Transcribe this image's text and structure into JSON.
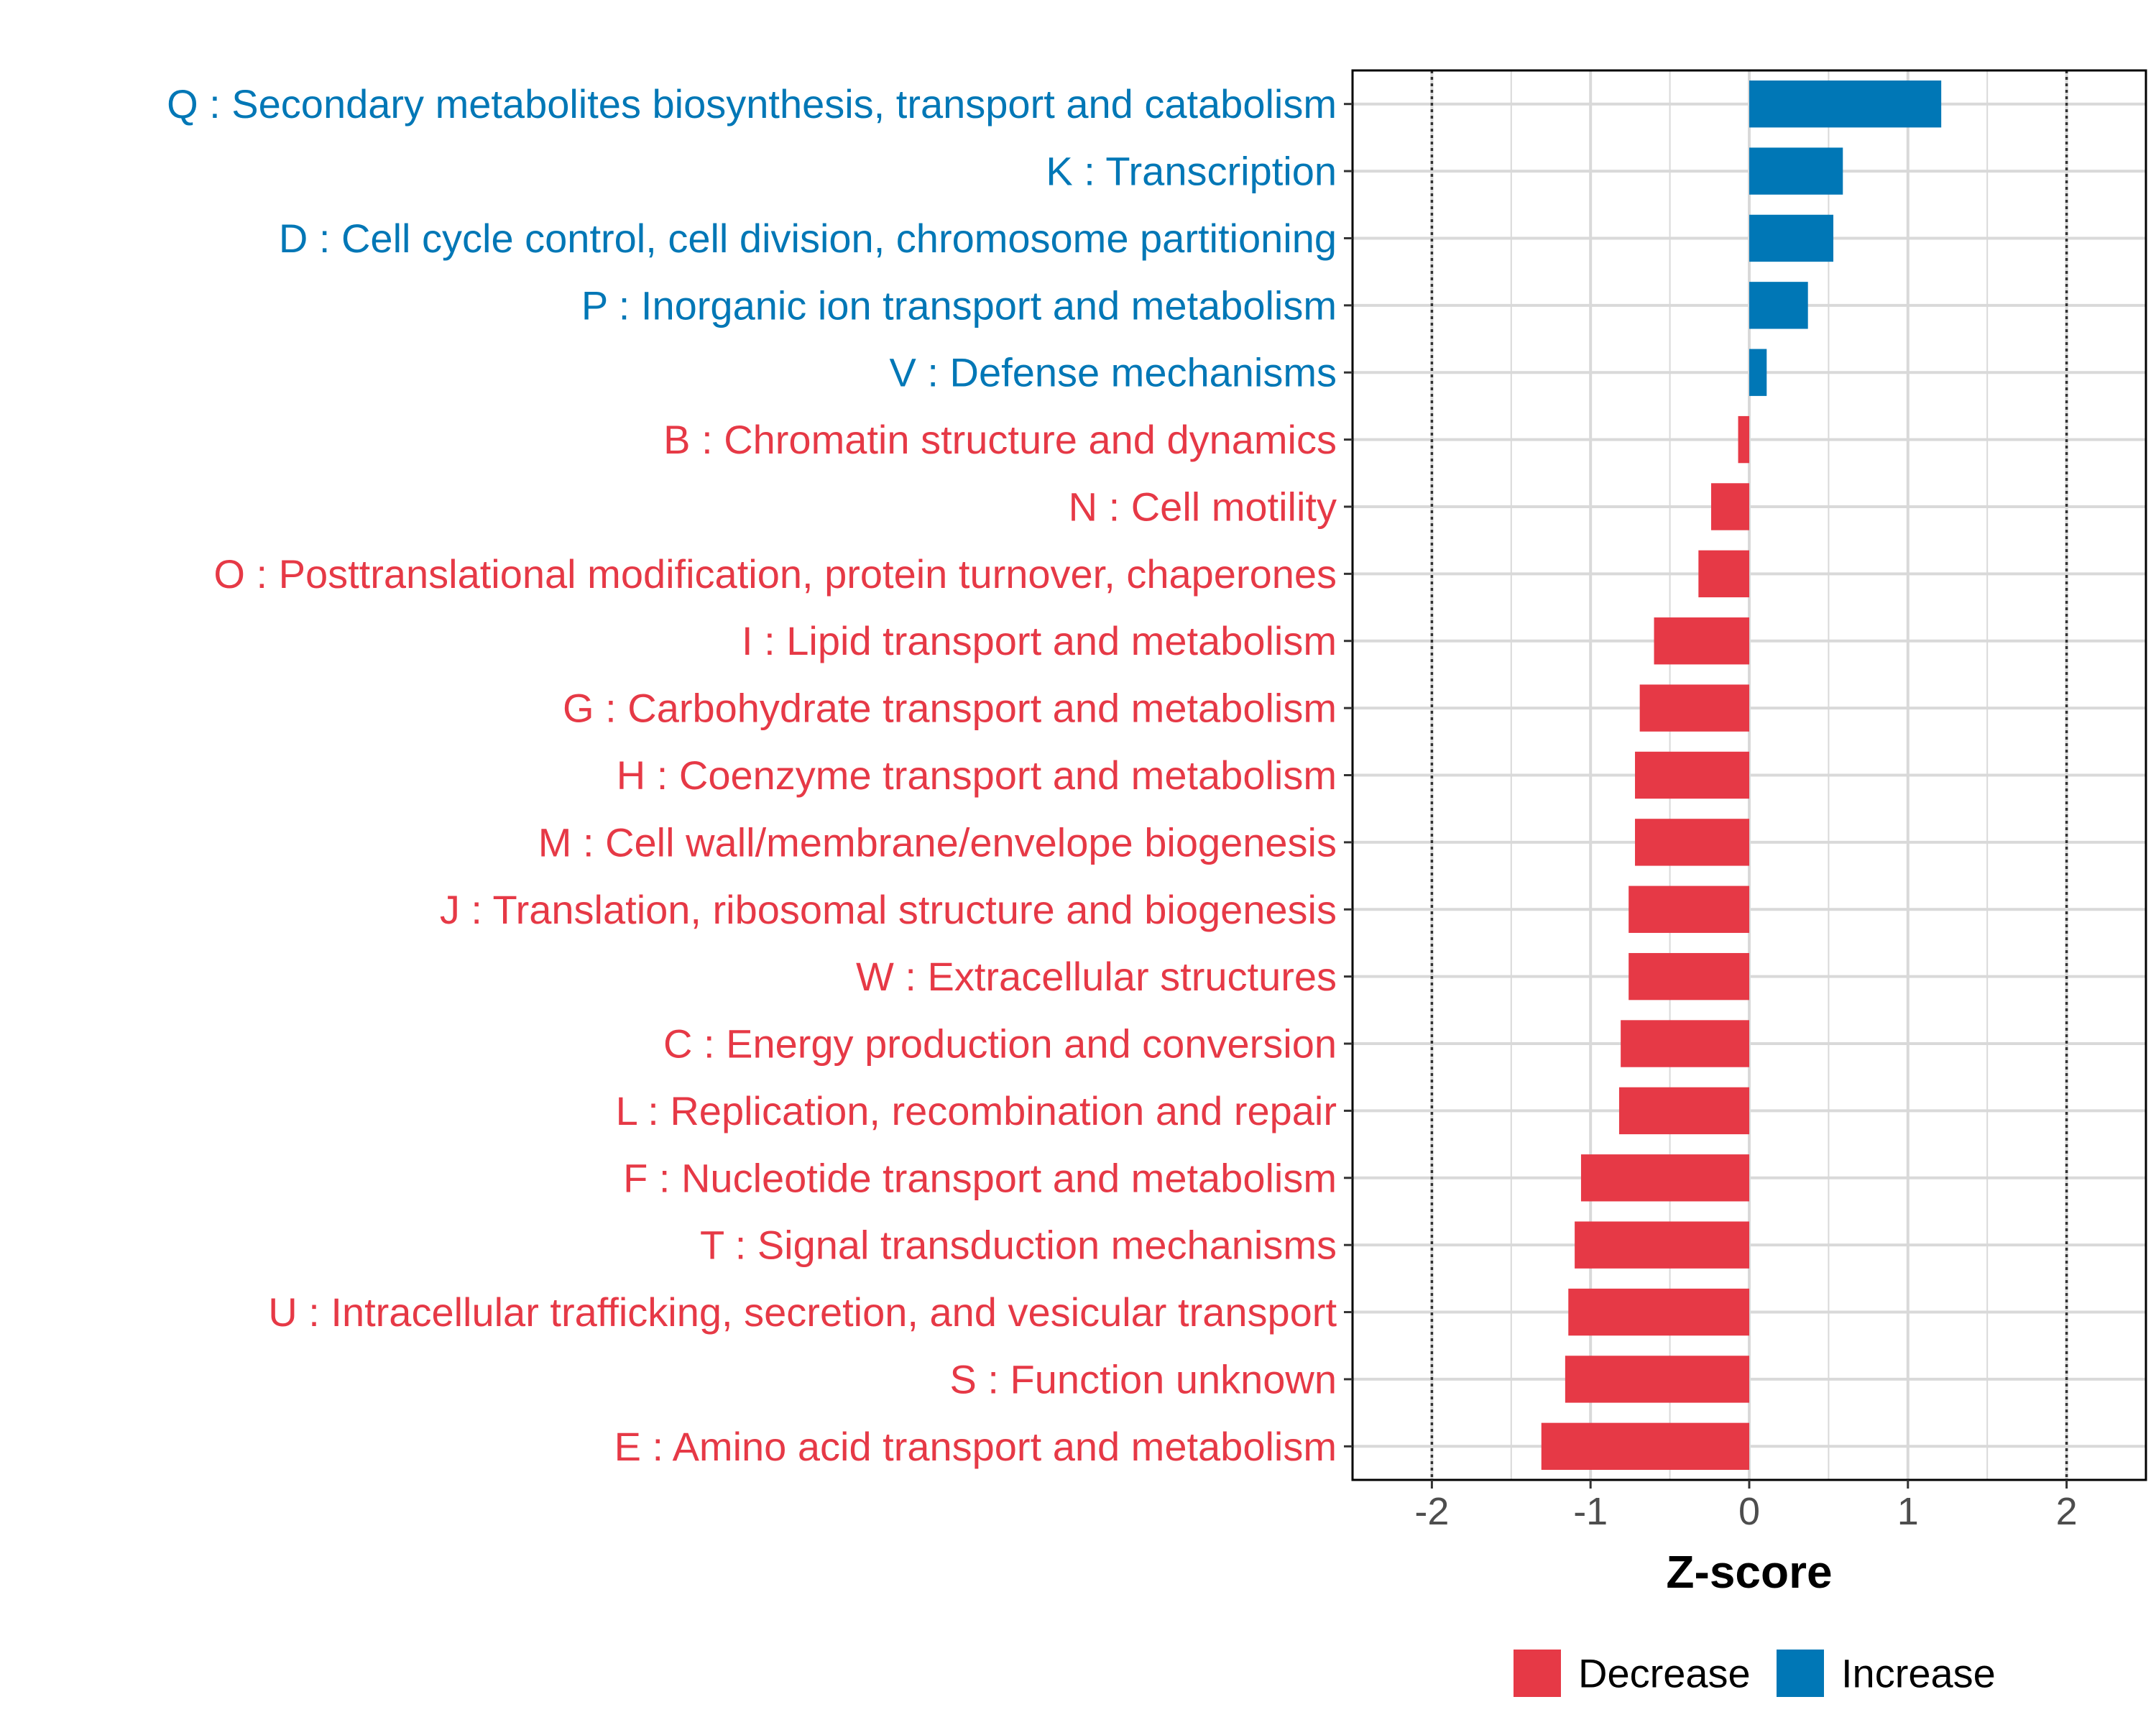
{
  "chart_data": {
    "type": "bar",
    "orientation": "horizontal",
    "xlabel": "Z-score",
    "ylabel": "",
    "xlim": [
      -2.5,
      2.5
    ],
    "xticks": [
      -2,
      -1,
      0,
      1,
      2
    ],
    "xtick_labels": [
      "-2",
      "-1",
      "0",
      "1",
      "2"
    ],
    "reference_lines": [
      -2,
      2
    ],
    "grid": true,
    "legend_position": "bottom-right",
    "legend": [
      {
        "name": "Decrease",
        "color": "#E63946"
      },
      {
        "name": "Increase",
        "color": "#0077B6"
      }
    ],
    "categories": [
      "Q : Secondary metabolites biosynthesis, transport and catabolism",
      "K : Transcription",
      "D : Cell cycle control, cell division, chromosome partitioning",
      "P : Inorganic ion transport and metabolism",
      "V : Defense mechanisms",
      "B : Chromatin structure and dynamics",
      "N : Cell motility",
      "O : Posttranslational modification, protein turnover, chaperones",
      "I : Lipid transport and metabolism",
      "G : Carbohydrate transport and metabolism",
      "H : Coenzyme transport and metabolism",
      "M : Cell wall/membrane/envelope biogenesis",
      "J : Translation, ribosomal structure and biogenesis",
      "W : Extracellular structures",
      "C : Energy production and conversion",
      "L : Replication, recombination and repair",
      "F : Nucleotide transport and metabolism",
      "T : Signal transduction mechanisms",
      "U : Intracellular trafficking, secretion, and vesicular transport",
      "S : Function unknown",
      "E : Amino acid transport and metabolism"
    ],
    "values": [
      1.21,
      0.59,
      0.53,
      0.37,
      0.11,
      -0.07,
      -0.24,
      -0.32,
      -0.6,
      -0.69,
      -0.72,
      -0.72,
      -0.76,
      -0.76,
      -0.81,
      -0.82,
      -1.06,
      -1.1,
      -1.14,
      -1.16,
      -1.31
    ],
    "groups": [
      "Increase",
      "Increase",
      "Increase",
      "Increase",
      "Increase",
      "Decrease",
      "Decrease",
      "Decrease",
      "Decrease",
      "Decrease",
      "Decrease",
      "Decrease",
      "Decrease",
      "Decrease",
      "Decrease",
      "Decrease",
      "Decrease",
      "Decrease",
      "Decrease",
      "Decrease",
      "Decrease"
    ]
  }
}
